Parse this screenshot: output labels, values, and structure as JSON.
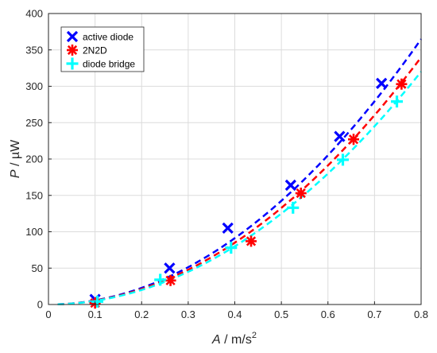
{
  "chart_data": {
    "type": "scatter",
    "title": "",
    "xlabel": {
      "var": "A",
      "unit": " / m/s",
      "sup": "2"
    },
    "ylabel": {
      "var": "P",
      "unit": " / µW"
    },
    "xlim": [
      0,
      0.8
    ],
    "ylim": [
      0,
      400
    ],
    "xticks": [
      "0",
      "0.1",
      "0.2",
      "0.3",
      "0.4",
      "0.5",
      "0.6",
      "0.7",
      "0.8"
    ],
    "yticks": [
      "0",
      "50",
      "100",
      "150",
      "200",
      "250",
      "300",
      "350",
      "400"
    ],
    "grid": true,
    "legend_position": "top-left",
    "series": [
      {
        "name": "active diode",
        "color": "#0000ff",
        "marker": "x",
        "x": [
          0.1,
          0.26,
          0.385,
          0.52,
          0.625,
          0.715
        ],
        "y": [
          7,
          50,
          105,
          164,
          231,
          304
        ],
        "fit_coeff": 570,
        "fit_x": [
          0.02,
          0.8
        ]
      },
      {
        "name": "2N2D",
        "color": "#ff0000",
        "marker": "asterisk",
        "x": [
          0.1,
          0.262,
          0.435,
          0.542,
          0.655,
          0.758
        ],
        "y": [
          2,
          33,
          87,
          153,
          227,
          303
        ],
        "fit_coeff": 531,
        "fit_x": [
          0.02,
          0.8
        ]
      },
      {
        "name": "diode bridge",
        "color": "#00ffff",
        "marker": "plus",
        "x": [
          0.105,
          0.24,
          0.392,
          0.525,
          0.632,
          0.748
        ],
        "y": [
          4,
          34,
          78,
          133,
          199,
          279
        ],
        "fit_coeff": 500,
        "fit_x": [
          0.02,
          0.8
        ]
      }
    ]
  }
}
